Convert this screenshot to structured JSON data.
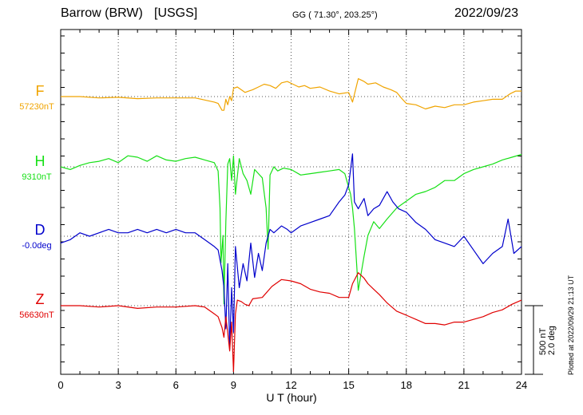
{
  "header": {
    "station": "Barrow (BRW)",
    "source": "[USGS]",
    "coords": "GG ( 71.30°, 203.25°)",
    "date": "2022/09/23"
  },
  "plotted_note": "Plotted at 2022/09/29 21:13 UT",
  "chart_data": {
    "type": "line",
    "title": "",
    "xlabel": "U T (hour)",
    "ylabel": "",
    "xlim": [
      0,
      24
    ],
    "xticks": [
      "0",
      "3",
      "6",
      "9",
      "12",
      "15",
      "18",
      "21",
      "24"
    ],
    "grid": true,
    "scale_bar": {
      "line1": "500 nT",
      "line2": "2.0 deg"
    },
    "colors": {
      "F": "#f0a400",
      "H": "#16e016",
      "D": "#0000cc",
      "Z": "#e00000"
    },
    "series": [
      {
        "name": "F",
        "baseline_label": "57230nT",
        "baseline": 0,
        "x": [
          0,
          1,
          2,
          3,
          4,
          5,
          6,
          7,
          7.5,
          8,
          8.2,
          8.4,
          8.5,
          8.6,
          8.7,
          8.8,
          8.9,
          9,
          9.2,
          9.4,
          9.6,
          9.8,
          10,
          10.3,
          10.6,
          10.9,
          11.2,
          11.5,
          11.8,
          12.1,
          12.4,
          12.7,
          13,
          13.5,
          14,
          14.5,
          15,
          15.2,
          15.5,
          15.8,
          16,
          16.4,
          16.8,
          17.2,
          17.5,
          17.8,
          18,
          18.5,
          19,
          19.5,
          20,
          20.5,
          21,
          21.5,
          22,
          22.5,
          23,
          23.4,
          23.7,
          24
        ],
        "values": [
          0,
          0,
          -10,
          -5,
          -15,
          -10,
          -10,
          -10,
          -25,
          -40,
          -50,
          -100,
          -100,
          -20,
          -60,
          0,
          -30,
          60,
          70,
          50,
          30,
          40,
          50,
          70,
          90,
          80,
          60,
          100,
          110,
          90,
          70,
          80,
          60,
          70,
          40,
          20,
          30,
          -40,
          130,
          110,
          90,
          100,
          70,
          50,
          30,
          -20,
          -50,
          -60,
          -90,
          -70,
          -80,
          -60,
          -60,
          -40,
          -30,
          -20,
          -20,
          20,
          40,
          40
        ]
      },
      {
        "name": "H",
        "baseline_label": "9310nT",
        "baseline": 0,
        "x": [
          0,
          0.5,
          1,
          1.5,
          2,
          2.5,
          3,
          3.5,
          4,
          4.5,
          5,
          5.5,
          6,
          6.5,
          7,
          7.5,
          8,
          8.2,
          8.3,
          8.35,
          8.45,
          8.5,
          8.6,
          8.7,
          8.8,
          8.9,
          9,
          9.1,
          9.3,
          9.5,
          9.7,
          9.9,
          10.1,
          10.3,
          10.5,
          10.7,
          10.8,
          10.9,
          11.1,
          11.3,
          11.6,
          12,
          12.5,
          13,
          13.5,
          14,
          14.5,
          14.8,
          15.1,
          15.2,
          15.3,
          15.5,
          15.8,
          16,
          16.3,
          16.6,
          17,
          17.5,
          18,
          18.5,
          19,
          19.5,
          20,
          20.5,
          21,
          21.5,
          22,
          22.5,
          23,
          23.5,
          24
        ],
        "values": [
          0,
          -20,
          10,
          30,
          40,
          60,
          30,
          80,
          70,
          40,
          80,
          50,
          40,
          60,
          70,
          50,
          30,
          -30,
          -300,
          -700,
          -500,
          -1000,
          -400,
          20,
          60,
          -100,
          80,
          -200,
          60,
          -50,
          -100,
          -200,
          -20,
          -50,
          -80,
          -300,
          -600,
          -60,
          0,
          -30,
          -10,
          -20,
          -60,
          -50,
          -40,
          -30,
          -20,
          -50,
          -200,
          -300,
          -450,
          -900,
          -650,
          -500,
          -400,
          -450,
          -380,
          -300,
          -250,
          -200,
          -180,
          -150,
          -100,
          -100,
          -50,
          -20,
          0,
          20,
          50,
          70,
          90
        ]
      },
      {
        "name": "D",
        "baseline_label": "-0.0deg",
        "baseline": 0,
        "x": [
          0,
          0.5,
          1,
          1.5,
          2,
          2.5,
          3,
          3.5,
          4,
          4.5,
          5,
          5.5,
          6,
          6.5,
          7,
          7.5,
          8,
          8.2,
          8.4,
          8.5,
          8.6,
          8.7,
          8.8,
          8.9,
          9,
          9.1,
          9.3,
          9.5,
          9.7,
          9.9,
          10.1,
          10.3,
          10.5,
          10.7,
          10.9,
          11.1,
          11.3,
          11.5,
          11.8,
          12,
          12.5,
          13,
          13.5,
          14,
          14.5,
          14.8,
          15,
          15.2,
          15.3,
          15.5,
          15.8,
          16,
          16.3,
          16.6,
          17,
          17.3,
          17.6,
          18,
          18.5,
          19,
          19.5,
          20,
          20.5,
          21,
          21.5,
          22,
          22.5,
          23,
          23.3,
          23.6,
          24
        ],
        "values": [
          -0.2,
          -0.1,
          0.1,
          0.0,
          0.1,
          0.2,
          0.1,
          0.1,
          0.2,
          0.1,
          0.2,
          0.1,
          0.2,
          0.1,
          0.1,
          -0.1,
          -0.3,
          -0.4,
          -1.0,
          -1.5,
          -2.7,
          -0.8,
          -3.3,
          -1.5,
          -2.8,
          -0.3,
          -1.5,
          -0.8,
          -1.3,
          -0.2,
          -1.2,
          -0.5,
          -1.0,
          -0.2,
          0.2,
          0.1,
          0.2,
          0.3,
          0.2,
          0.1,
          0.3,
          0.4,
          0.5,
          0.6,
          1.0,
          1.2,
          1.5,
          2.4,
          1.0,
          0.8,
          1.1,
          0.6,
          0.8,
          0.9,
          1.3,
          1.0,
          0.8,
          0.7,
          0.4,
          0.2,
          -0.1,
          -0.2,
          -0.3,
          0.0,
          -0.4,
          -0.8,
          -0.5,
          -0.3,
          0.5,
          -0.5,
          -0.3
        ]
      },
      {
        "name": "Z",
        "baseline_label": "56630nT",
        "baseline": 0,
        "x": [
          0,
          1,
          2,
          3,
          4,
          5,
          6,
          7,
          7.5,
          8,
          8.2,
          8.4,
          8.5,
          8.6,
          8.7,
          8.8,
          8.9,
          9,
          9.1,
          9.2,
          9.4,
          9.6,
          9.8,
          10,
          10.5,
          11,
          11.5,
          12,
          12.5,
          13,
          13.5,
          14,
          14.5,
          15,
          15.2,
          15.5,
          15.8,
          16,
          16.3,
          16.6,
          17,
          17.5,
          18,
          18.5,
          19,
          19.5,
          20,
          20.5,
          21,
          21.5,
          22,
          22.5,
          23,
          23.5,
          24
        ],
        "values": [
          0,
          0,
          -10,
          0,
          -20,
          -10,
          -10,
          0,
          -10,
          -60,
          -80,
          -160,
          -230,
          -80,
          -200,
          -330,
          -120,
          -480,
          -60,
          40,
          30,
          10,
          0,
          50,
          60,
          140,
          190,
          180,
          160,
          120,
          100,
          90,
          60,
          60,
          160,
          240,
          200,
          160,
          120,
          80,
          20,
          -40,
          -70,
          -100,
          -130,
          -130,
          -140,
          -120,
          -120,
          -100,
          -80,
          -50,
          -30,
          10,
          40
        ]
      }
    ]
  }
}
